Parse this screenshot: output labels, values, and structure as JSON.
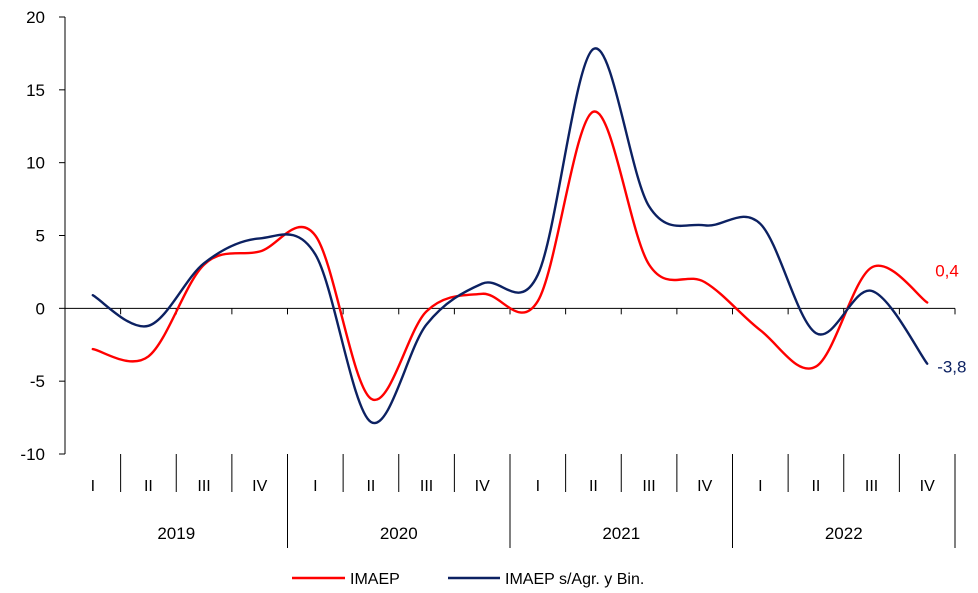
{
  "chart_data": {
    "type": "line",
    "title": "",
    "xlabel": "",
    "ylabel": "",
    "ylim": [
      -10,
      20
    ],
    "yticks": [
      20,
      15,
      10,
      5,
      0,
      -5,
      -10
    ],
    "grid": false,
    "legend_position": "bottom",
    "quarter_labels": [
      "I",
      "II",
      "III",
      "IV",
      "I",
      "II",
      "III",
      "IV",
      "I",
      "II",
      "III",
      "IV",
      "I",
      "II",
      "III",
      "IV"
    ],
    "years": [
      "2019",
      "2020",
      "2021",
      "2022"
    ],
    "series": [
      {
        "name": "IMAEP",
        "color": "#ff0000",
        "values": [
          -2.8,
          -3.3,
          3.0,
          3.9,
          5.0,
          -6.2,
          -0.2,
          1.0,
          0.5,
          13.5,
          3.0,
          1.8,
          -1.5,
          -4.0,
          2.8,
          0.4
        ],
        "end_label": "0,4"
      },
      {
        "name": "IMAEP s/Agr. y Bin.",
        "color": "#0c2162",
        "values": [
          0.9,
          -1.2,
          3.1,
          4.8,
          3.7,
          -7.8,
          -1.1,
          1.7,
          2.3,
          17.8,
          7.0,
          5.7,
          5.8,
          -1.7,
          1.2,
          -3.8
        ],
        "end_label": "-3,8"
      }
    ]
  }
}
